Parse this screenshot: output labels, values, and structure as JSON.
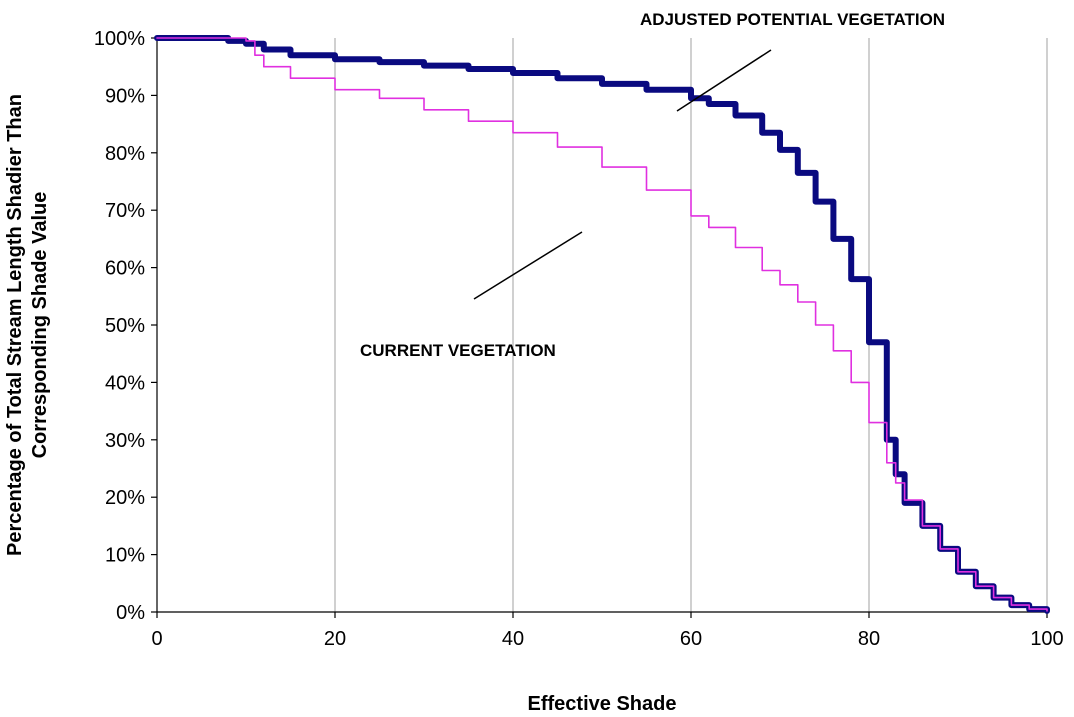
{
  "chart_data": {
    "type": "line",
    "title": "",
    "xlabel": "Effective Shade",
    "ylabel_line1": "Percentage of Total Stream Length Shadier Than",
    "ylabel_line2": "Corresponding Shade Value",
    "xlim": [
      0,
      100
    ],
    "ylim": [
      0,
      100
    ],
    "x_ticks": [
      0,
      20,
      40,
      60,
      80,
      100
    ],
    "y_ticks": [
      0,
      10,
      20,
      30,
      40,
      50,
      60,
      70,
      80,
      90,
      100
    ],
    "y_tick_suffix": "%",
    "grid": {
      "vertical": true,
      "horizontal": false
    },
    "series": [
      {
        "name": "ADJUSTED POTENTIAL VEGETATION",
        "color": "#0a0a80",
        "x": [
          0,
          5,
          8,
          10,
          12,
          15,
          20,
          25,
          30,
          35,
          40,
          45,
          50,
          55,
          60,
          62,
          65,
          68,
          70,
          72,
          74,
          76,
          78,
          80,
          82,
          83,
          84,
          86,
          88,
          90,
          92,
          94,
          96,
          98,
          100
        ],
        "y": [
          100,
          100,
          99.5,
          99,
          98,
          97,
          96.3,
          95.8,
          95.2,
          94.6,
          93.9,
          93,
          92,
          91,
          89.5,
          88.5,
          86.5,
          83.5,
          80.5,
          76.5,
          71.5,
          65,
          58,
          47,
          30,
          24,
          19,
          15,
          11,
          7,
          4.5,
          2.5,
          1.2,
          0.5,
          0.2
        ]
      },
      {
        "name": "CURRENT VEGETATION",
        "color": "#e030e0",
        "x": [
          0,
          5,
          8,
          10,
          11,
          12,
          15,
          20,
          25,
          30,
          35,
          40,
          45,
          50,
          55,
          60,
          62,
          65,
          68,
          70,
          72,
          74,
          76,
          78,
          80,
          82,
          83,
          84,
          86,
          88,
          90,
          92,
          94,
          96,
          98,
          100
        ],
        "y": [
          100,
          100,
          100,
          99.5,
          97,
          95,
          93,
          91,
          89.5,
          87.5,
          85.5,
          83.5,
          81,
          77.5,
          73.5,
          69,
          67,
          63.5,
          59.5,
          57,
          54,
          50,
          45.5,
          40,
          33,
          26,
          22.5,
          19.5,
          15,
          11,
          7,
          4.5,
          2.5,
          1.2,
          0.5,
          0.2
        ]
      }
    ],
    "annotations": [
      {
        "text": "ADJUSTED POTENTIAL VEGETATION",
        "series": 0
      },
      {
        "text": "CURRENT VEGETATION",
        "series": 1
      }
    ]
  }
}
